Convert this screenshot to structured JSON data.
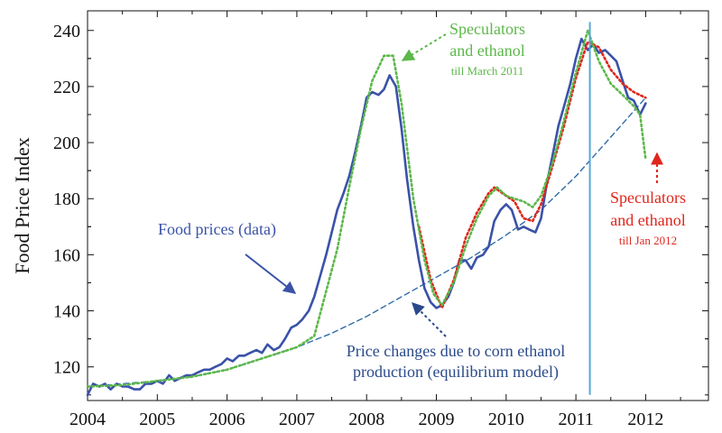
{
  "chart_data": {
    "type": "line",
    "title": "",
    "xlabel": "",
    "ylabel": "Food Price Index",
    "xlim": [
      2004,
      2012.9
    ],
    "ylim": [
      108,
      247
    ],
    "x_ticks": [
      "2004",
      "2005",
      "2006",
      "2007",
      "2008",
      "2009",
      "2010",
      "2011",
      "2012"
    ],
    "y_ticks": [
      "120",
      "140",
      "160",
      "180",
      "200",
      "220",
      "240"
    ],
    "grid": false,
    "vertical_marker_x": 2011.2,
    "colors": {
      "data": "#3a52a8",
      "model_march": "#5cb84a",
      "model_jan": "#e0261c",
      "equilibrium": "#2f6ca8",
      "marker": "#5aa8d6",
      "ann_blue": "#3a52a8",
      "ann_navy": "#2a4a8a"
    },
    "series": [
      {
        "name": "Food prices (data)",
        "style": "solid",
        "points": [
          [
            2004.0,
            110
          ],
          [
            2004.08,
            114
          ],
          [
            2004.17,
            113
          ],
          [
            2004.25,
            114
          ],
          [
            2004.33,
            112
          ],
          [
            2004.42,
            114
          ],
          [
            2004.5,
            113
          ],
          [
            2004.58,
            113
          ],
          [
            2004.67,
            112
          ],
          [
            2004.75,
            112
          ],
          [
            2004.83,
            114
          ],
          [
            2004.92,
            114
          ],
          [
            2005.0,
            115
          ],
          [
            2005.08,
            114
          ],
          [
            2005.17,
            117
          ],
          [
            2005.25,
            115
          ],
          [
            2005.33,
            116
          ],
          [
            2005.42,
            117
          ],
          [
            2005.5,
            117
          ],
          [
            2005.58,
            118
          ],
          [
            2005.67,
            119
          ],
          [
            2005.75,
            119
          ],
          [
            2005.83,
            120
          ],
          [
            2005.92,
            121
          ],
          [
            2006.0,
            123
          ],
          [
            2006.08,
            122
          ],
          [
            2006.17,
            124
          ],
          [
            2006.25,
            124
          ],
          [
            2006.33,
            125
          ],
          [
            2006.42,
            126
          ],
          [
            2006.5,
            125
          ],
          [
            2006.58,
            128
          ],
          [
            2006.67,
            126
          ],
          [
            2006.75,
            127
          ],
          [
            2006.83,
            130
          ],
          [
            2006.92,
            134
          ],
          [
            2007.0,
            135
          ],
          [
            2007.08,
            137
          ],
          [
            2007.17,
            140
          ],
          [
            2007.25,
            145
          ],
          [
            2007.33,
            152
          ],
          [
            2007.42,
            160
          ],
          [
            2007.5,
            168
          ],
          [
            2007.58,
            176
          ],
          [
            2007.67,
            182
          ],
          [
            2007.75,
            188
          ],
          [
            2007.83,
            196
          ],
          [
            2007.92,
            206
          ],
          [
            2008.0,
            216
          ],
          [
            2008.08,
            218
          ],
          [
            2008.17,
            217
          ],
          [
            2008.25,
            219
          ],
          [
            2008.33,
            224
          ],
          [
            2008.42,
            220
          ],
          [
            2008.5,
            205
          ],
          [
            2008.58,
            187
          ],
          [
            2008.67,
            170
          ],
          [
            2008.75,
            158
          ],
          [
            2008.83,
            148
          ],
          [
            2008.92,
            143
          ],
          [
            2009.0,
            141
          ],
          [
            2009.08,
            142
          ],
          [
            2009.17,
            145
          ],
          [
            2009.25,
            150
          ],
          [
            2009.33,
            158
          ],
          [
            2009.42,
            158
          ],
          [
            2009.5,
            155
          ],
          [
            2009.58,
            159
          ],
          [
            2009.67,
            160
          ],
          [
            2009.75,
            163
          ],
          [
            2009.83,
            172
          ],
          [
            2009.92,
            176
          ],
          [
            2010.0,
            178
          ],
          [
            2010.08,
            176
          ],
          [
            2010.17,
            169
          ],
          [
            2010.25,
            170
          ],
          [
            2010.33,
            169
          ],
          [
            2010.42,
            168
          ],
          [
            2010.5,
            173
          ],
          [
            2010.58,
            185
          ],
          [
            2010.67,
            196
          ],
          [
            2010.75,
            206
          ],
          [
            2010.83,
            213
          ],
          [
            2010.92,
            221
          ],
          [
            2011.0,
            230
          ],
          [
            2011.08,
            237
          ],
          [
            2011.17,
            233
          ],
          [
            2011.25,
            235
          ],
          [
            2011.33,
            232
          ],
          [
            2011.42,
            233
          ],
          [
            2011.5,
            231
          ],
          [
            2011.58,
            229
          ],
          [
            2011.67,
            222
          ],
          [
            2011.75,
            216
          ],
          [
            2011.83,
            215
          ],
          [
            2011.92,
            210
          ],
          [
            2012.0,
            214
          ]
        ]
      },
      {
        "name": "Speculators and ethanol till March 2011",
        "style": "dotted",
        "points": [
          [
            2004.0,
            113
          ],
          [
            2004.5,
            113.5
          ],
          [
            2005.0,
            115
          ],
          [
            2005.5,
            116.5
          ],
          [
            2006.0,
            119
          ],
          [
            2006.5,
            123
          ],
          [
            2007.0,
            127
          ],
          [
            2007.25,
            131
          ],
          [
            2007.42,
            147
          ],
          [
            2007.58,
            162
          ],
          [
            2007.75,
            184
          ],
          [
            2007.92,
            205
          ],
          [
            2008.08,
            222
          ],
          [
            2008.25,
            231
          ],
          [
            2008.38,
            231
          ],
          [
            2008.5,
            214
          ],
          [
            2008.67,
            180
          ],
          [
            2008.83,
            158
          ],
          [
            2008.96,
            146
          ],
          [
            2009.08,
            142
          ],
          [
            2009.25,
            150
          ],
          [
            2009.42,
            163
          ],
          [
            2009.58,
            173
          ],
          [
            2009.75,
            181
          ],
          [
            2009.87,
            184
          ],
          [
            2010.0,
            181
          ],
          [
            2010.12,
            180
          ],
          [
            2010.25,
            179
          ],
          [
            2010.38,
            177
          ],
          [
            2010.5,
            181
          ],
          [
            2010.67,
            193
          ],
          [
            2010.83,
            208
          ],
          [
            2011.0,
            225
          ],
          [
            2011.17,
            240
          ],
          [
            2011.33,
            229
          ],
          [
            2011.5,
            221
          ],
          [
            2011.67,
            217
          ],
          [
            2011.83,
            213
          ],
          [
            2011.92,
            210
          ],
          [
            2012.0,
            194
          ]
        ]
      },
      {
        "name": "Speculators and ethanol till Jan 2012",
        "style": "dotted",
        "points": [
          [
            2008.75,
            170
          ],
          [
            2008.92,
            151
          ],
          [
            2009.08,
            141
          ],
          [
            2009.25,
            151
          ],
          [
            2009.42,
            166
          ],
          [
            2009.58,
            175
          ],
          [
            2009.75,
            182
          ],
          [
            2009.83,
            184
          ],
          [
            2010.0,
            181
          ],
          [
            2010.12,
            179
          ],
          [
            2010.25,
            173
          ],
          [
            2010.38,
            172
          ],
          [
            2010.5,
            178
          ],
          [
            2010.67,
            192
          ],
          [
            2010.83,
            206
          ],
          [
            2011.0,
            223
          ],
          [
            2011.17,
            236
          ],
          [
            2011.33,
            234
          ],
          [
            2011.5,
            226
          ],
          [
            2011.67,
            221
          ],
          [
            2011.83,
            218
          ],
          [
            2012.0,
            216
          ]
        ]
      },
      {
        "name": "Price changes due to corn ethanol production (equilibrium model)",
        "style": "dashed",
        "points": [
          [
            2004.0,
            113
          ],
          [
            2004.5,
            114
          ],
          [
            2005.0,
            115
          ],
          [
            2005.5,
            116.5
          ],
          [
            2006.0,
            119
          ],
          [
            2006.5,
            123
          ],
          [
            2007.0,
            127
          ],
          [
            2007.5,
            132
          ],
          [
            2008.0,
            138
          ],
          [
            2008.5,
            145
          ],
          [
            2009.0,
            152
          ],
          [
            2009.5,
            159
          ],
          [
            2010.0,
            167
          ],
          [
            2010.5,
            176
          ],
          [
            2011.0,
            188
          ],
          [
            2011.5,
            202
          ],
          [
            2012.0,
            216
          ]
        ]
      }
    ],
    "annotations": [
      {
        "id": "data",
        "lines": [
          "Food prices (data)"
        ]
      },
      {
        "id": "model_march",
        "lines": [
          "Speculators",
          "and ethanol",
          "till March 2011"
        ]
      },
      {
        "id": "model_jan",
        "lines": [
          "Speculators",
          "and ethanol",
          "till Jan 2012"
        ]
      },
      {
        "id": "equilibrium",
        "lines": [
          "Price changes due to corn ethanol",
          "production (equilibrium model)"
        ]
      }
    ]
  }
}
